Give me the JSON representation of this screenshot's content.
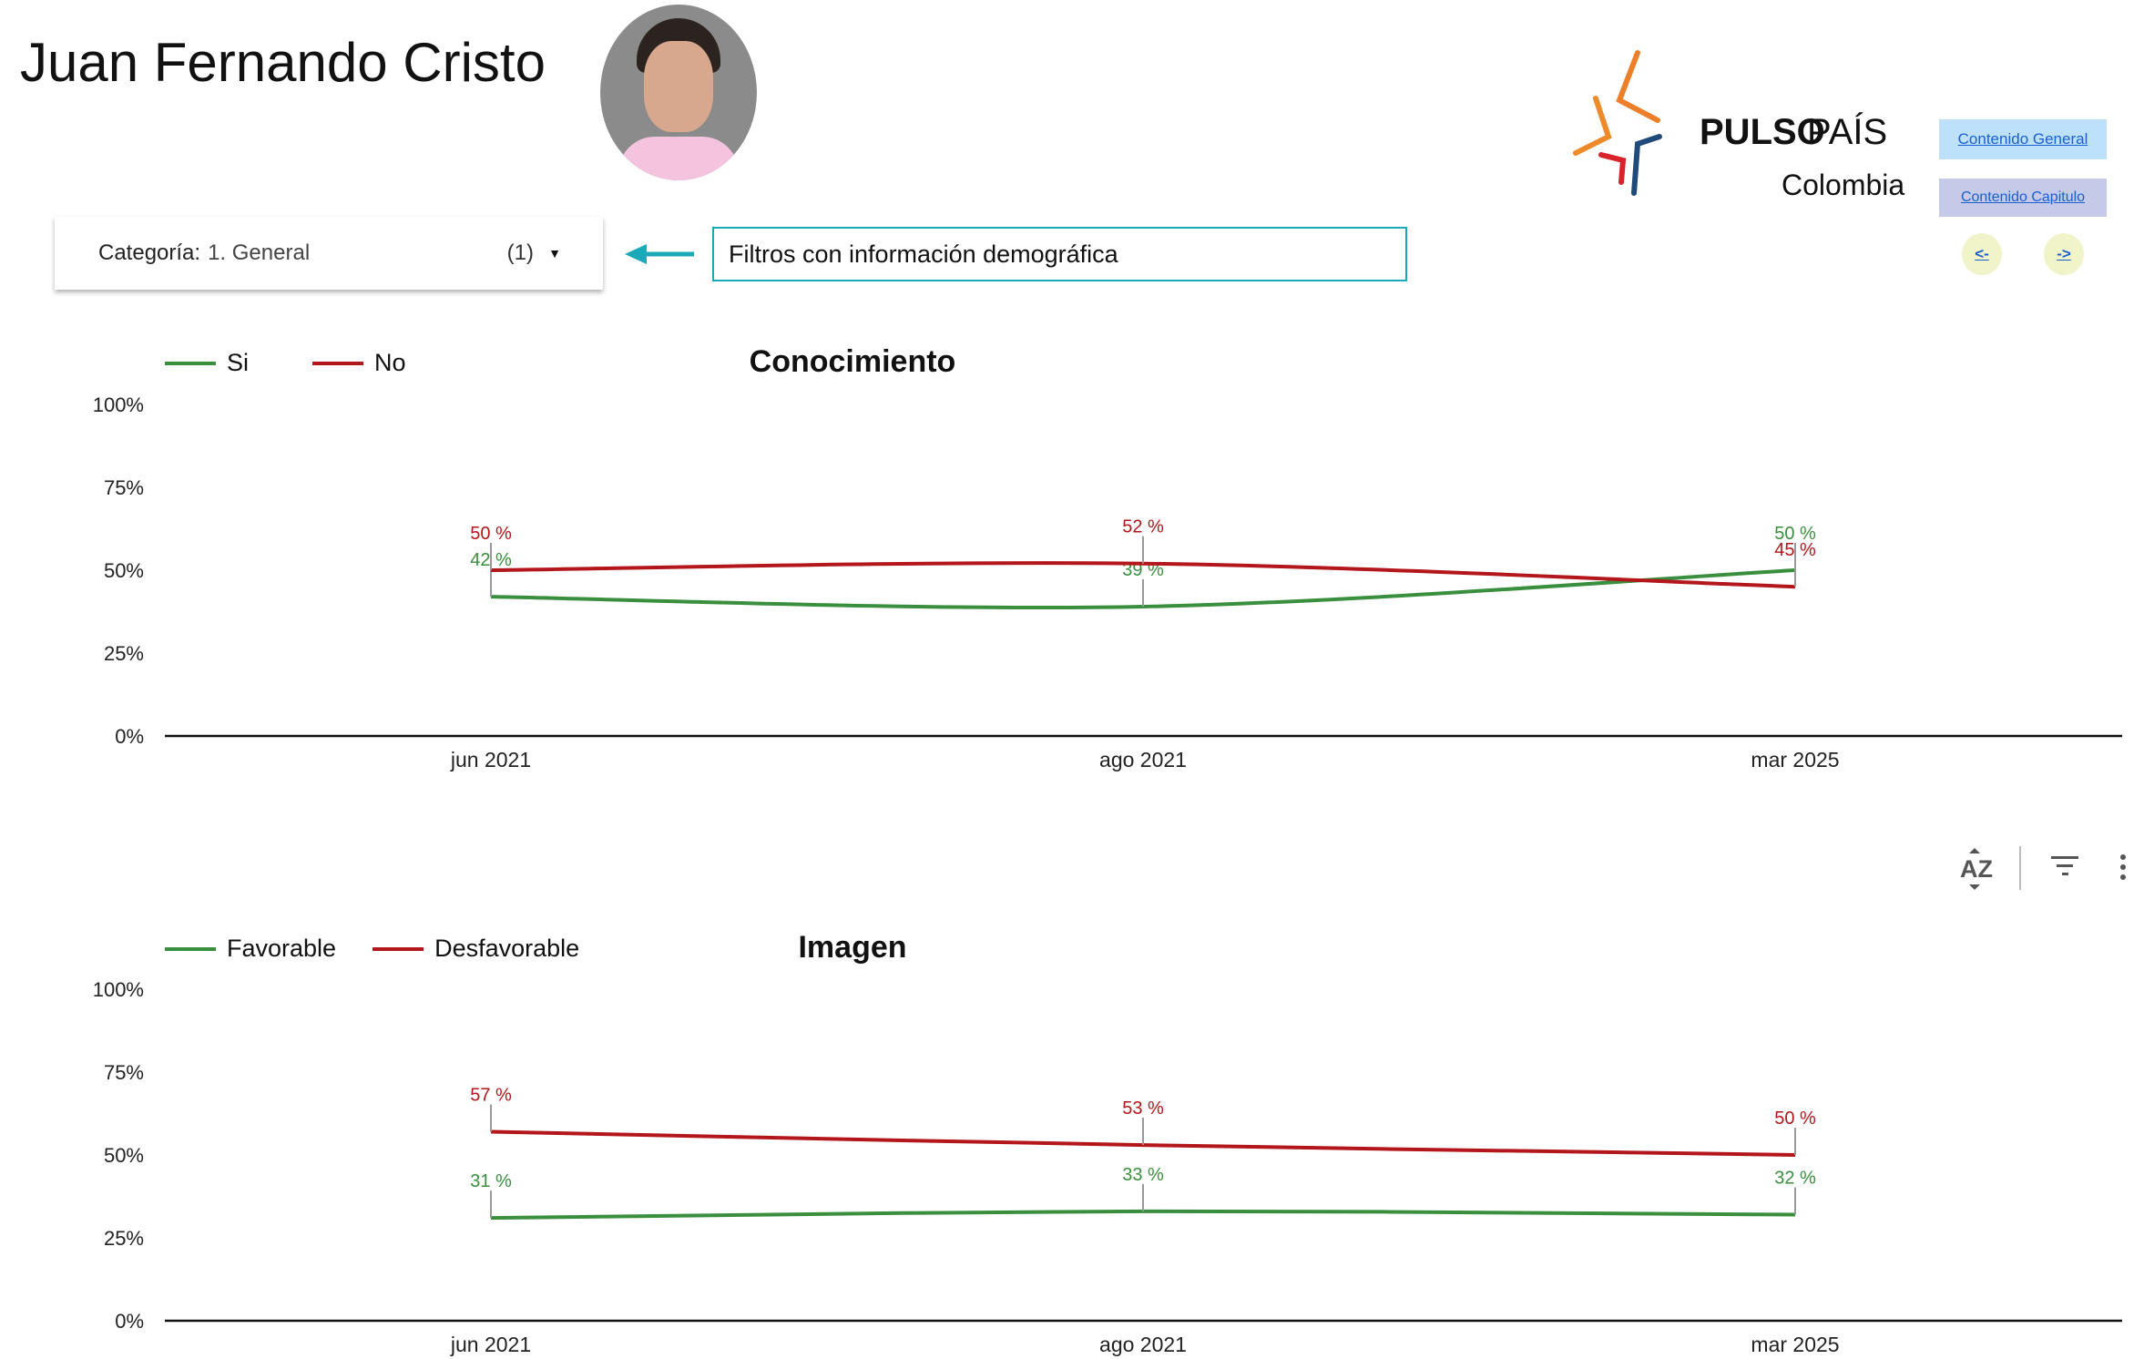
{
  "header": {
    "title": "Juan Fernando Cristo",
    "logo": {
      "brand_bold": "PULSO",
      "brand_light": "PAÍS",
      "country": "Colombia"
    },
    "buttons": {
      "general": "Contenido General",
      "capitulo": "Contenido Capitulo",
      "prev": "<-",
      "next": "->"
    }
  },
  "filters": {
    "category_label": "Categoría:",
    "category_value": "1. General",
    "category_count": "(1)",
    "note": "Filtros con información demográfica"
  },
  "colors": {
    "green": "#3a8f3e",
    "red": "#b3161b",
    "accent": "#1ba8b8"
  },
  "chart_data": [
    {
      "type": "line",
      "title": "Conocimiento",
      "categories": [
        "jun 2021",
        "ago 2021",
        "mar 2025"
      ],
      "y_ticks": [
        "0%",
        "25%",
        "50%",
        "75%",
        "100%"
      ],
      "ylim": [
        0,
        100
      ],
      "legend_position": "top-left",
      "series": [
        {
          "name": "Si",
          "color": "#3a8f3e",
          "values": [
            42,
            39,
            50
          ],
          "labels": [
            "42 %",
            "39 %",
            "50 %"
          ]
        },
        {
          "name": "No",
          "color": "#b3161b",
          "values": [
            50,
            52,
            45
          ],
          "labels": [
            "50 %",
            "52 %",
            "45 %"
          ]
        }
      ]
    },
    {
      "type": "line",
      "title": "Imagen",
      "categories": [
        "jun 2021",
        "ago 2021",
        "mar 2025"
      ],
      "y_ticks": [
        "0%",
        "25%",
        "50%",
        "75%",
        "100%"
      ],
      "ylim": [
        0,
        100
      ],
      "legend_position": "top-left",
      "series": [
        {
          "name": "Favorable",
          "color": "#3a8f3e",
          "values": [
            31,
            33,
            32
          ],
          "labels": [
            "31 %",
            "33 %",
            "32 %"
          ]
        },
        {
          "name": "Desfavorable",
          "color": "#b3161b",
          "values": [
            57,
            53,
            50
          ],
          "labels": [
            "57 %",
            "53 %",
            "50 %"
          ]
        }
      ]
    }
  ]
}
